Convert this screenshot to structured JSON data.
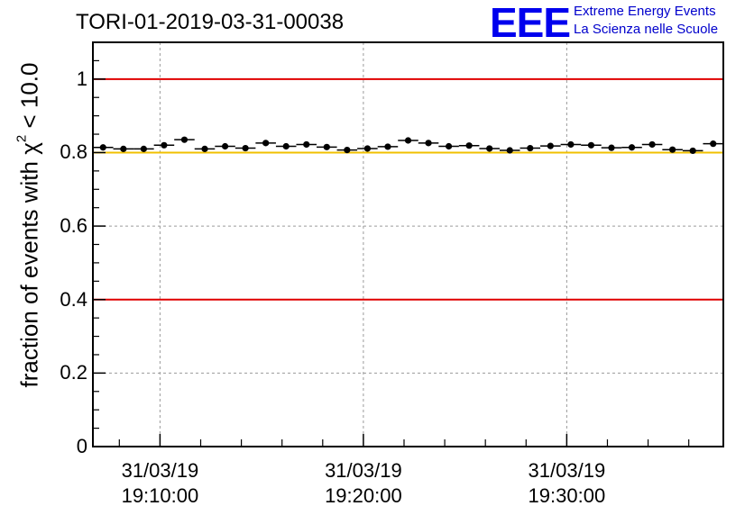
{
  "header": {
    "title": "TORI-01-2019-03-31-00038",
    "logo_text": "EEE",
    "logo_line1": "Extreme Energy Events",
    "logo_line2": "La Scienza nelle Scuole"
  },
  "colors": {
    "threshold_red": "#e00000",
    "threshold_yellow": "#f0c000",
    "marker": "#000000",
    "logo_blue": "#0000ee"
  },
  "chart_data": {
    "type": "scatter",
    "title": "TORI-01-2019-03-31-00038",
    "ylabel_prefix": "fraction of events with ",
    "ylabel_symbol": "χ",
    "ylabel_exp": "2",
    "ylabel_suffix": " < 10.0",
    "xlabel": "",
    "ylim": [
      0,
      1.1
    ],
    "xlim_minutes": [
      -3.3,
      27.7
    ],
    "grid": true,
    "y_ticks": [
      0,
      0.2,
      0.4,
      0.6,
      0.8,
      1
    ],
    "y_tick_labels": [
      "0",
      "0.2",
      "0.4",
      "0.6",
      "0.8",
      "1"
    ],
    "x_ticks": [
      {
        "minutes": 0,
        "date": "31/03/19",
        "time": "19:10:00"
      },
      {
        "minutes": 10,
        "date": "31/03/19",
        "time": "19:20:00"
      },
      {
        "minutes": 20,
        "date": "31/03/19",
        "time": "19:30:00"
      }
    ],
    "bin_width_minutes": 1,
    "threshold_lines": [
      {
        "value": 1.0,
        "color": "red"
      },
      {
        "value": 0.8,
        "color": "yellow"
      },
      {
        "value": 0.4,
        "color": "red"
      }
    ],
    "series": [
      {
        "name": "fraction",
        "x_minutes": [
          -2.8,
          -1.8,
          -0.8,
          0.2,
          1.2,
          2.2,
          3.2,
          4.2,
          5.2,
          6.2,
          7.2,
          8.2,
          9.2,
          10.2,
          11.2,
          12.2,
          13.2,
          14.2,
          15.2,
          16.2,
          17.2,
          18.2,
          19.2,
          20.2,
          21.2,
          22.2,
          23.2,
          24.2,
          25.2,
          26.2,
          27.2
        ],
        "values": [
          0.814,
          0.81,
          0.81,
          0.82,
          0.835,
          0.81,
          0.817,
          0.812,
          0.826,
          0.817,
          0.822,
          0.815,
          0.807,
          0.811,
          0.816,
          0.833,
          0.826,
          0.817,
          0.819,
          0.811,
          0.806,
          0.812,
          0.818,
          0.822,
          0.82,
          0.813,
          0.814,
          0.822,
          0.808,
          0.805,
          0.824
        ]
      }
    ]
  }
}
